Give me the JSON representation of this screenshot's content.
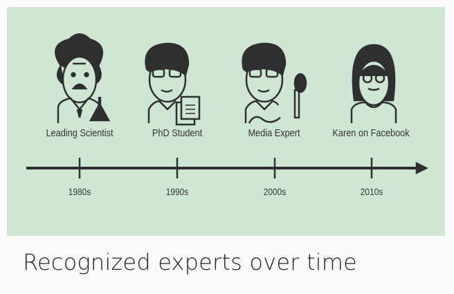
{
  "experts": [
    {
      "label": "Leading Scientist",
      "era": "1980s"
    },
    {
      "label": "PhD Student",
      "era": "1990s"
    },
    {
      "label": "Media Expert",
      "era": "2000s"
    },
    {
      "label": "Karen on Facebook",
      "era": "2010s"
    }
  ],
  "caption": "Recognized experts over time",
  "colors": {
    "panel": "#cfe6d5",
    "ink": "#2f2f2f"
  }
}
